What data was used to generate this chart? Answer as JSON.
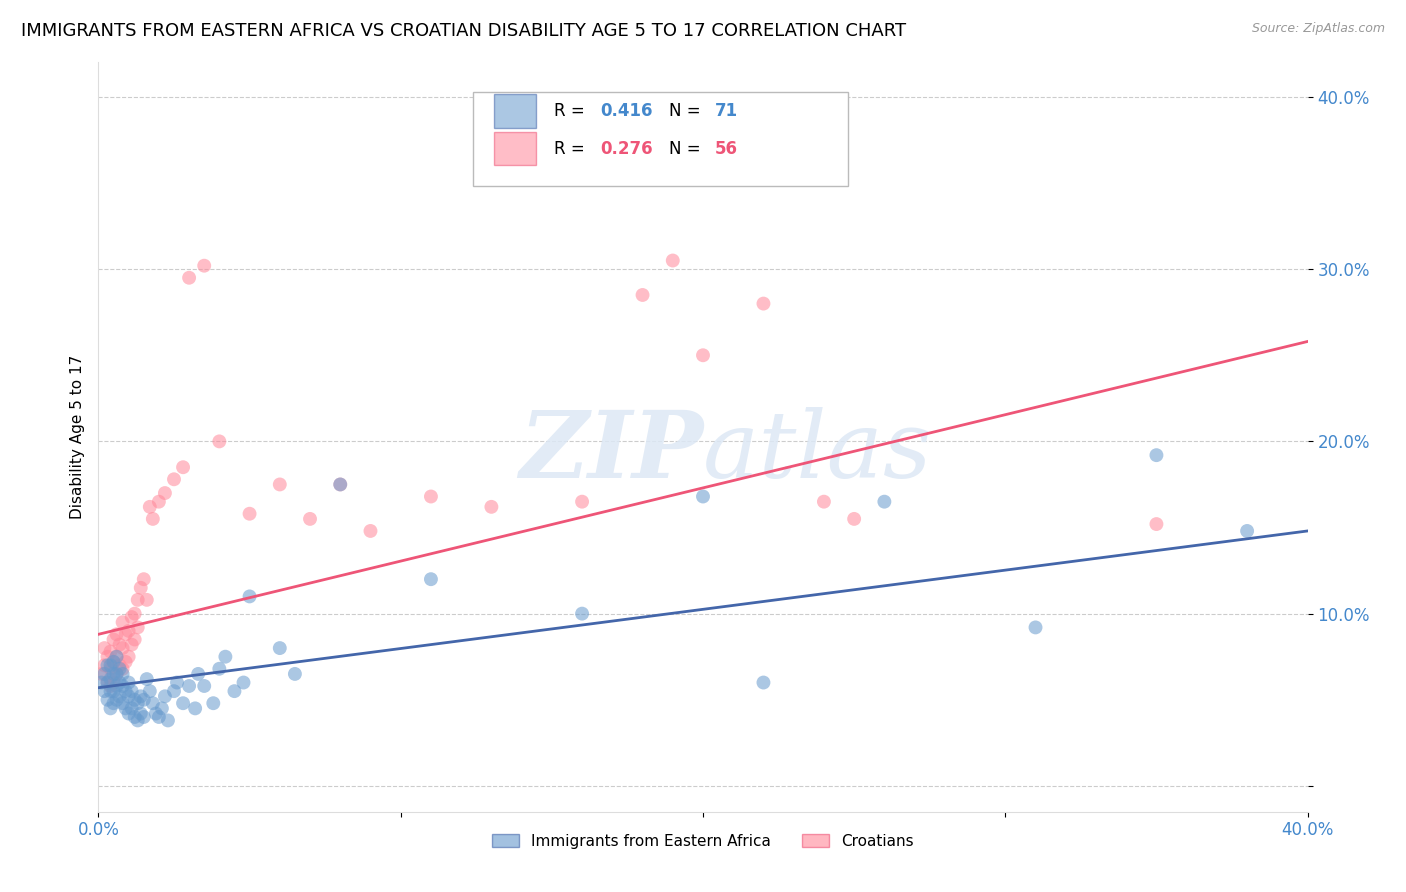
{
  "title": "IMMIGRANTS FROM EASTERN AFRICA VS CROATIAN DISABILITY AGE 5 TO 17 CORRELATION CHART",
  "source": "Source: ZipAtlas.com",
  "ylabel": "Disability Age 5 to 17",
  "xlim": [
    0.0,
    0.4
  ],
  "ylim": [
    -0.015,
    0.42
  ],
  "yticks": [
    0.0,
    0.1,
    0.2,
    0.3,
    0.4
  ],
  "ytick_labels": [
    "",
    "10.0%",
    "20.0%",
    "30.0%",
    "40.0%"
  ],
  "xticks": [
    0.0,
    0.1,
    0.2,
    0.3,
    0.4
  ],
  "xtick_labels": [
    "0.0%",
    "",
    "",
    "",
    "40.0%"
  ],
  "legend1_R": "0.416",
  "legend1_N": "71",
  "legend2_R": "0.276",
  "legend2_N": "56",
  "blue_color": "#6699CC",
  "pink_color": "#FF8899",
  "blue_line_color": "#4466AA",
  "pink_line_color": "#EE5577",
  "axis_color": "#4488CC",
  "pink_legend_color": "#EE5577",
  "title_fontsize": 13,
  "label_fontsize": 11,
  "tick_fontsize": 12,
  "blue_scatter_x": [
    0.001,
    0.002,
    0.002,
    0.003,
    0.003,
    0.003,
    0.004,
    0.004,
    0.004,
    0.004,
    0.005,
    0.005,
    0.005,
    0.005,
    0.006,
    0.006,
    0.006,
    0.006,
    0.007,
    0.007,
    0.007,
    0.008,
    0.008,
    0.008,
    0.009,
    0.009,
    0.01,
    0.01,
    0.01,
    0.011,
    0.011,
    0.012,
    0.012,
    0.013,
    0.013,
    0.014,
    0.014,
    0.015,
    0.015,
    0.016,
    0.017,
    0.018,
    0.019,
    0.02,
    0.021,
    0.022,
    0.023,
    0.025,
    0.026,
    0.028,
    0.03,
    0.032,
    0.033,
    0.035,
    0.038,
    0.04,
    0.042,
    0.045,
    0.048,
    0.05,
    0.06,
    0.065,
    0.08,
    0.11,
    0.16,
    0.2,
    0.22,
    0.26,
    0.31,
    0.35,
    0.38
  ],
  "blue_scatter_y": [
    0.06,
    0.055,
    0.065,
    0.05,
    0.06,
    0.07,
    0.045,
    0.055,
    0.062,
    0.07,
    0.048,
    0.055,
    0.065,
    0.072,
    0.05,
    0.058,
    0.065,
    0.075,
    0.052,
    0.06,
    0.068,
    0.048,
    0.058,
    0.065,
    0.045,
    0.055,
    0.042,
    0.052,
    0.06,
    0.045,
    0.055,
    0.04,
    0.05,
    0.038,
    0.048,
    0.042,
    0.052,
    0.04,
    0.05,
    0.062,
    0.055,
    0.048,
    0.042,
    0.04,
    0.045,
    0.052,
    0.038,
    0.055,
    0.06,
    0.048,
    0.058,
    0.045,
    0.065,
    0.058,
    0.048,
    0.068,
    0.075,
    0.055,
    0.06,
    0.11,
    0.08,
    0.065,
    0.175,
    0.12,
    0.1,
    0.168,
    0.06,
    0.165,
    0.092,
    0.192,
    0.148
  ],
  "pink_scatter_x": [
    0.001,
    0.002,
    0.002,
    0.003,
    0.003,
    0.004,
    0.004,
    0.004,
    0.005,
    0.005,
    0.005,
    0.006,
    0.006,
    0.006,
    0.007,
    0.007,
    0.008,
    0.008,
    0.008,
    0.009,
    0.009,
    0.01,
    0.01,
    0.011,
    0.011,
    0.012,
    0.012,
    0.013,
    0.013,
    0.014,
    0.015,
    0.016,
    0.017,
    0.018,
    0.02,
    0.022,
    0.025,
    0.028,
    0.03,
    0.035,
    0.04,
    0.05,
    0.06,
    0.07,
    0.08,
    0.09,
    0.11,
    0.13,
    0.16,
    0.18,
    0.19,
    0.2,
    0.22,
    0.24,
    0.25,
    0.35
  ],
  "pink_scatter_y": [
    0.065,
    0.07,
    0.08,
    0.06,
    0.075,
    0.058,
    0.068,
    0.078,
    0.06,
    0.072,
    0.085,
    0.065,
    0.075,
    0.088,
    0.07,
    0.082,
    0.068,
    0.08,
    0.095,
    0.072,
    0.088,
    0.075,
    0.09,
    0.082,
    0.098,
    0.085,
    0.1,
    0.092,
    0.108,
    0.115,
    0.12,
    0.108,
    0.162,
    0.155,
    0.165,
    0.17,
    0.178,
    0.185,
    0.295,
    0.302,
    0.2,
    0.158,
    0.175,
    0.155,
    0.175,
    0.148,
    0.168,
    0.162,
    0.165,
    0.285,
    0.305,
    0.25,
    0.28,
    0.165,
    0.155,
    0.152
  ],
  "blue_trend": [
    0.057,
    0.148
  ],
  "pink_trend": [
    0.088,
    0.258
  ]
}
